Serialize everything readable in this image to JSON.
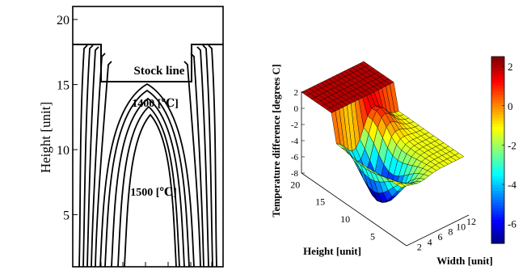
{
  "chart_data": [
    {
      "type": "contour",
      "ylabel": "Height [unit]",
      "yticks": [
        "5",
        "10",
        "15",
        "20"
      ],
      "ylim": [
        1,
        21
      ],
      "annotations": {
        "stock_line": "Stock line",
        "upper_isotherm": "1400 [℃]",
        "inner_isotherm": "1500 [℃]"
      },
      "isotherm_levels_degC": [
        1400,
        1500
      ],
      "stock_line_height": 15.3,
      "furnace_top_height": 18
    },
    {
      "type": "surface3d",
      "zlabel": "Temperature difference [degrees C]",
      "xlabel": "Height [unit]",
      "ylabel": "Width [unit]",
      "zticks": [
        "2",
        "0",
        "-2",
        "-4",
        "-6",
        "-8"
      ],
      "xticks": [
        "20",
        "15",
        "10",
        "5"
      ],
      "yticks": [
        "2",
        "4",
        "6",
        "8",
        "10",
        "12"
      ],
      "zlim": [
        -8,
        2.5
      ],
      "colorbar_ticks": [
        "2",
        "0",
        "-2",
        "-4",
        "-6"
      ],
      "colorbar_range": [
        -7,
        2.5
      ],
      "colormap": "jet"
    }
  ]
}
